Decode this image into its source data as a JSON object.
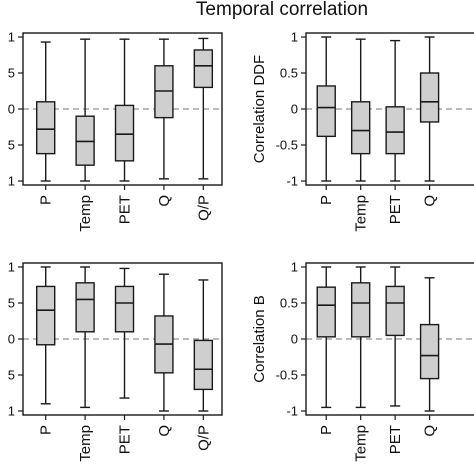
{
  "title": "Temporal correlation",
  "colors": {
    "box_fill": "#cfcfcf",
    "stroke": "#1a1a1a",
    "zero_line": "#777777"
  },
  "chart_data": [
    {
      "type": "box",
      "ylabel": "",
      "ylim": [
        -1,
        1
      ],
      "ytick_labels": [
        "1",
        "5",
        "0",
        "5",
        "1"
      ],
      "categories": [
        "P",
        "Temp",
        "PET",
        "Q",
        "Q/P"
      ],
      "boxes": [
        {
          "min": -1.0,
          "q1": -0.62,
          "median": -0.28,
          "q3": 0.1,
          "max": 0.93
        },
        {
          "min": -1.0,
          "q1": -0.78,
          "median": -0.45,
          "q3": -0.1,
          "max": 0.97
        },
        {
          "min": -1.0,
          "q1": -0.72,
          "median": -0.35,
          "q3": 0.05,
          "max": 0.97
        },
        {
          "min": -0.97,
          "q1": -0.12,
          "median": 0.25,
          "q3": 0.6,
          "max": 0.97
        },
        {
          "min": -0.97,
          "q1": 0.3,
          "median": 0.6,
          "q3": 0.82,
          "max": 0.98
        }
      ]
    },
    {
      "type": "box",
      "ylabel": "Correlation DDF",
      "ylim": [
        -1,
        1
      ],
      "ytick_labels": [
        "1",
        "0.5",
        "0",
        "-0.5",
        "-1"
      ],
      "categories": [
        "P",
        "Temp",
        "PET",
        "Q"
      ],
      "boxes": [
        {
          "min": -1.0,
          "q1": -0.38,
          "median": 0.02,
          "q3": 0.32,
          "max": 1.0
        },
        {
          "min": -1.0,
          "q1": -0.62,
          "median": -0.3,
          "q3": 0.1,
          "max": 0.97
        },
        {
          "min": -1.0,
          "q1": -0.62,
          "median": -0.32,
          "q3": 0.03,
          "max": 0.95
        },
        {
          "min": -1.0,
          "q1": -0.18,
          "median": 0.1,
          "q3": 0.5,
          "max": 1.0
        }
      ]
    },
    {
      "type": "box",
      "ylabel": "",
      "ylim": [
        -1,
        1
      ],
      "ytick_labels": [
        "1",
        "5",
        "0",
        "5",
        "1"
      ],
      "categories": [
        "P",
        "Temp",
        "PET",
        "Q",
        "Q/P"
      ],
      "boxes": [
        {
          "min": -0.9,
          "q1": -0.08,
          "median": 0.4,
          "q3": 0.73,
          "max": 1.0
        },
        {
          "min": -0.95,
          "q1": 0.1,
          "median": 0.55,
          "q3": 0.78,
          "max": 1.0
        },
        {
          "min": -0.82,
          "q1": 0.1,
          "median": 0.5,
          "q3": 0.73,
          "max": 0.98
        },
        {
          "min": -1.0,
          "q1": -0.47,
          "median": -0.07,
          "q3": 0.32,
          "max": 0.9
        },
        {
          "min": -1.0,
          "q1": -0.7,
          "median": -0.42,
          "q3": -0.02,
          "max": 0.82
        }
      ]
    },
    {
      "type": "box",
      "ylabel": "Correlation B",
      "ylim": [
        -1,
        1
      ],
      "ytick_labels": [
        "1",
        "0.5",
        "0",
        "-0.5",
        "-1"
      ],
      "categories": [
        "P",
        "Temp",
        "PET",
        "Q"
      ],
      "boxes": [
        {
          "min": -0.95,
          "q1": 0.03,
          "median": 0.47,
          "q3": 0.72,
          "max": 1.0
        },
        {
          "min": -0.95,
          "q1": 0.03,
          "median": 0.5,
          "q3": 0.78,
          "max": 1.0
        },
        {
          "min": -0.93,
          "q1": 0.05,
          "median": 0.5,
          "q3": 0.73,
          "max": 1.0
        },
        {
          "min": -1.0,
          "q1": -0.55,
          "median": -0.23,
          "q3": 0.2,
          "max": 0.85
        }
      ]
    }
  ]
}
